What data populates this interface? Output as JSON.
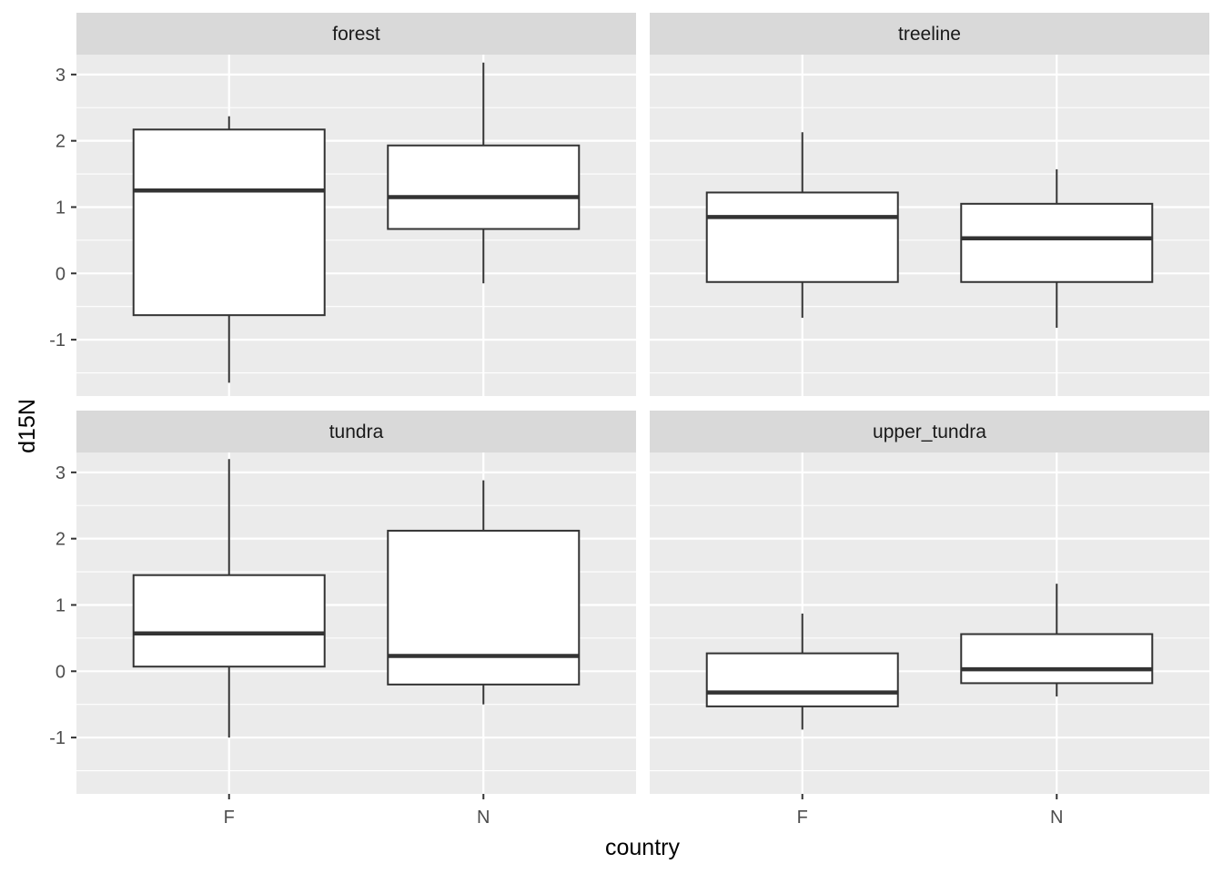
{
  "chart_data": {
    "type": "box",
    "facet_variable": "habitat",
    "xlabel": "country",
    "ylabel": "d15N",
    "ylim": [
      -1.85,
      3.3
    ],
    "y_ticks": [
      -1,
      0,
      1,
      2,
      3
    ],
    "y_tick_labels": [
      "-1",
      "0",
      "1",
      "2",
      "3"
    ],
    "categories": [
      "F",
      "N"
    ],
    "grid": true,
    "panels": [
      {
        "title": "forest",
        "boxes": [
          {
            "category": "F",
            "whisker_low": -1.65,
            "q1": -0.63,
            "median": 1.25,
            "q3": 2.17,
            "whisker_high": 2.37
          },
          {
            "category": "N",
            "whisker_low": -0.15,
            "q1": 0.67,
            "median": 1.15,
            "q3": 1.93,
            "whisker_high": 3.18
          }
        ]
      },
      {
        "title": "treeline",
        "boxes": [
          {
            "category": "F",
            "whisker_low": -0.67,
            "q1": -0.13,
            "median": 0.85,
            "q3": 1.22,
            "whisker_high": 2.13
          },
          {
            "category": "N",
            "whisker_low": -0.82,
            "q1": -0.13,
            "median": 0.53,
            "q3": 1.05,
            "whisker_high": 1.57
          }
        ]
      },
      {
        "title": "tundra",
        "boxes": [
          {
            "category": "F",
            "whisker_low": -1.0,
            "q1": 0.07,
            "median": 0.57,
            "q3": 1.45,
            "whisker_high": 3.2
          },
          {
            "category": "N",
            "whisker_low": -0.5,
            "q1": -0.2,
            "median": 0.23,
            "q3": 2.12,
            "whisker_high": 2.88
          }
        ]
      },
      {
        "title": "upper_tundra",
        "boxes": [
          {
            "category": "F",
            "whisker_low": -0.88,
            "q1": -0.53,
            "median": -0.32,
            "q3": 0.27,
            "whisker_high": 0.87
          },
          {
            "category": "N",
            "whisker_low": -0.38,
            "q1": -0.18,
            "median": 0.03,
            "q3": 0.56,
            "whisker_high": 1.32
          }
        ]
      }
    ]
  },
  "colors": {
    "panel_background": "#ebebeb",
    "strip_background": "#d9d9d9",
    "major_grid": "#ffffff",
    "box_fill": "#ffffff",
    "box_line": "#333333",
    "tick_text": "#4d4d4d",
    "strip_text": "#1a1a1a"
  }
}
